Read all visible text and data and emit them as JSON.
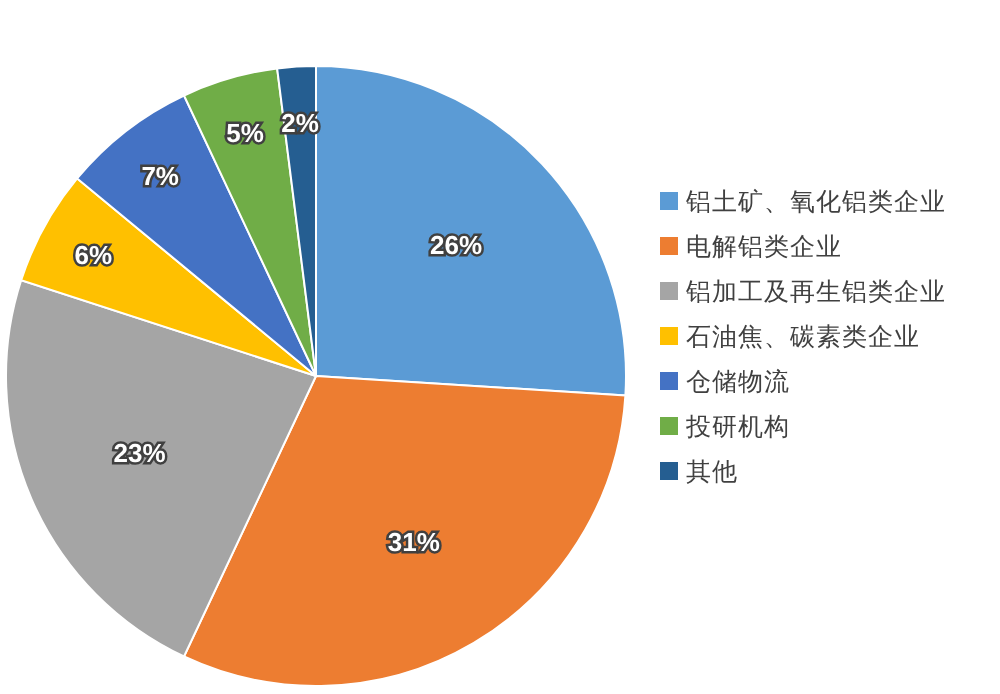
{
  "chart_data": {
    "type": "pie",
    "categories": [
      "铝土矿、氧化铝类企业",
      "电解铝类企业",
      "铝加工及再生铝类企业",
      "石油焦、碳素类企业",
      "仓储物流",
      "投研机构",
      "其他"
    ],
    "values": [
      26,
      31,
      23,
      6,
      7,
      5,
      2
    ],
    "colors": [
      "#5b9bd5",
      "#ed7d31",
      "#a5a5a5",
      "#ffc000",
      "#4472c4",
      "#70ad47",
      "#255e91"
    ],
    "value_labels": [
      "26%",
      "31%",
      "23%",
      "6%",
      "7%",
      "5%",
      "2%"
    ],
    "legend": "right"
  }
}
